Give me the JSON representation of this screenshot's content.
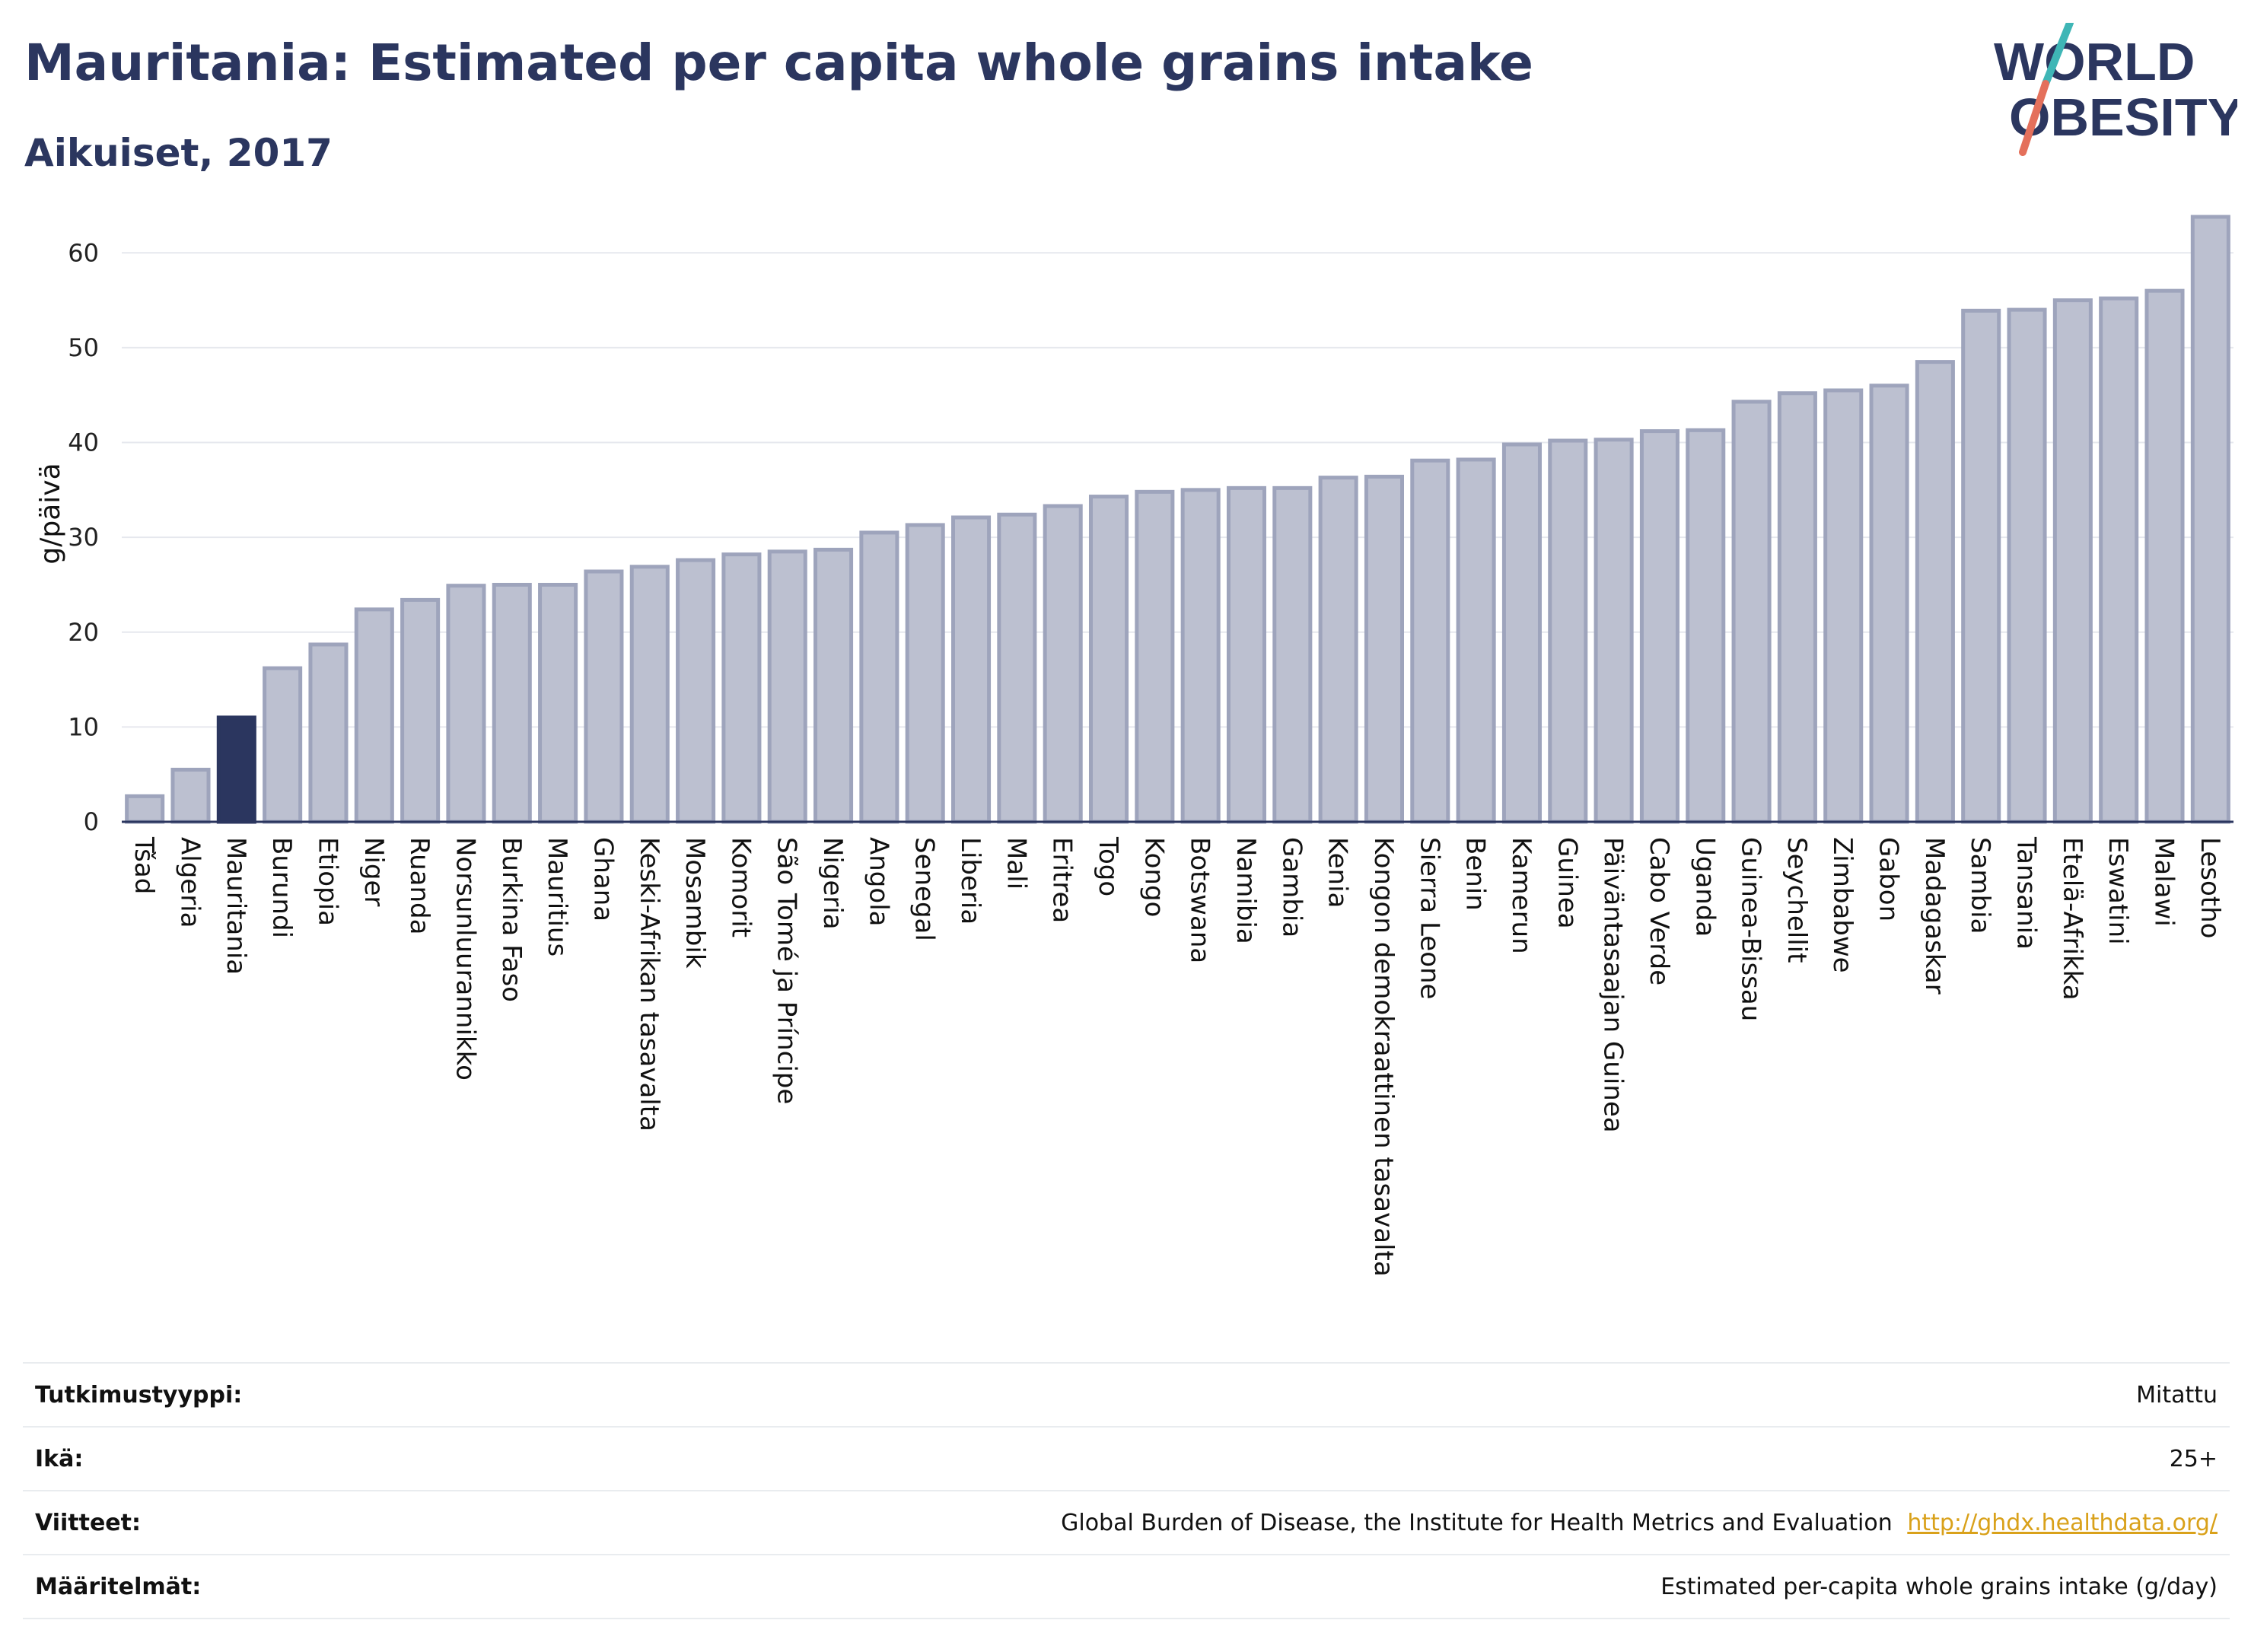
{
  "header": {
    "title": "Mauritania: Estimated per capita whole grains intake",
    "subtitle": "Aikuiset, 2017"
  },
  "logo": {
    "text_line1": "WORLD",
    "text_line2": "OBESITY",
    "colors": {
      "text": "#2b365f",
      "slash_teal": "#3fb6b6",
      "slash_red": "#e4705b"
    }
  },
  "colors": {
    "bar_fill": "#bcc0d0",
    "bar_stroke": "#9ea4bc",
    "highlight_fill": "#2b365f",
    "axis": "#2b365f",
    "grid": "#e6e8ee"
  },
  "chart_data": {
    "type": "bar",
    "ylabel": "g/päivä",
    "ylim": [
      0,
      65
    ],
    "yticks": [
      0,
      10,
      20,
      30,
      40,
      50,
      60
    ],
    "grid": true,
    "highlight": "Mauritania",
    "categories": [
      "Tšad",
      "Algeria",
      "Mauritania",
      "Burundi",
      "Etiopia",
      "Niger",
      "Ruanda",
      "Norsunluurannikko",
      "Burkina Faso",
      "Mauritius",
      "Ghana",
      "Keski-Afrikan tasavalta",
      "Mosambik",
      "Komorit",
      "São Tomé ja Príncipe",
      "Nigeria",
      "Angola",
      "Senegal",
      "Liberia",
      "Mali",
      "Eritrea",
      "Togo",
      "Kongo",
      "Botswana",
      "Namibia",
      "Gambia",
      "Kenia",
      "Kongon demokraattinen tasavalta",
      "Sierra Leone",
      "Benin",
      "Kamerun",
      "Guinea",
      "Päiväntasaajan Guinea",
      "Cabo Verde",
      "Uganda",
      "Guinea-Bissau",
      "Seychellit",
      "Zimbabwe",
      "Gabon",
      "Madagaskar",
      "Sambia",
      "Tansania",
      "Etelä-Afrikka",
      "Eswatini",
      "Malawi",
      "Lesotho"
    ],
    "values": [
      2.7,
      5.5,
      11.0,
      16.2,
      18.7,
      22.4,
      23.4,
      24.9,
      25.0,
      25.0,
      26.4,
      26.9,
      27.6,
      28.2,
      28.5,
      28.7,
      30.5,
      31.3,
      32.1,
      32.4,
      33.3,
      34.3,
      34.8,
      35.0,
      35.2,
      35.2,
      36.3,
      36.4,
      38.1,
      38.2,
      39.8,
      40.2,
      40.3,
      41.2,
      41.3,
      44.3,
      45.2,
      45.5,
      46.0,
      48.5,
      53.9,
      54.0,
      55.0,
      55.2,
      56.0,
      63.8
    ]
  },
  "meta": {
    "rows": [
      {
        "key": "Tutkimustyyppi:",
        "value": "Mitattu",
        "link": ""
      },
      {
        "key": "Ikä:",
        "value": "25+",
        "link": ""
      },
      {
        "key": "Viitteet:",
        "value": "Global Burden of Disease, the Institute for Health Metrics and Evaluation",
        "link": "http://ghdx.healthdata.org/"
      },
      {
        "key": "Määritelmät:",
        "value": "Estimated per-capita whole grains intake (g/day)",
        "link": ""
      }
    ]
  }
}
